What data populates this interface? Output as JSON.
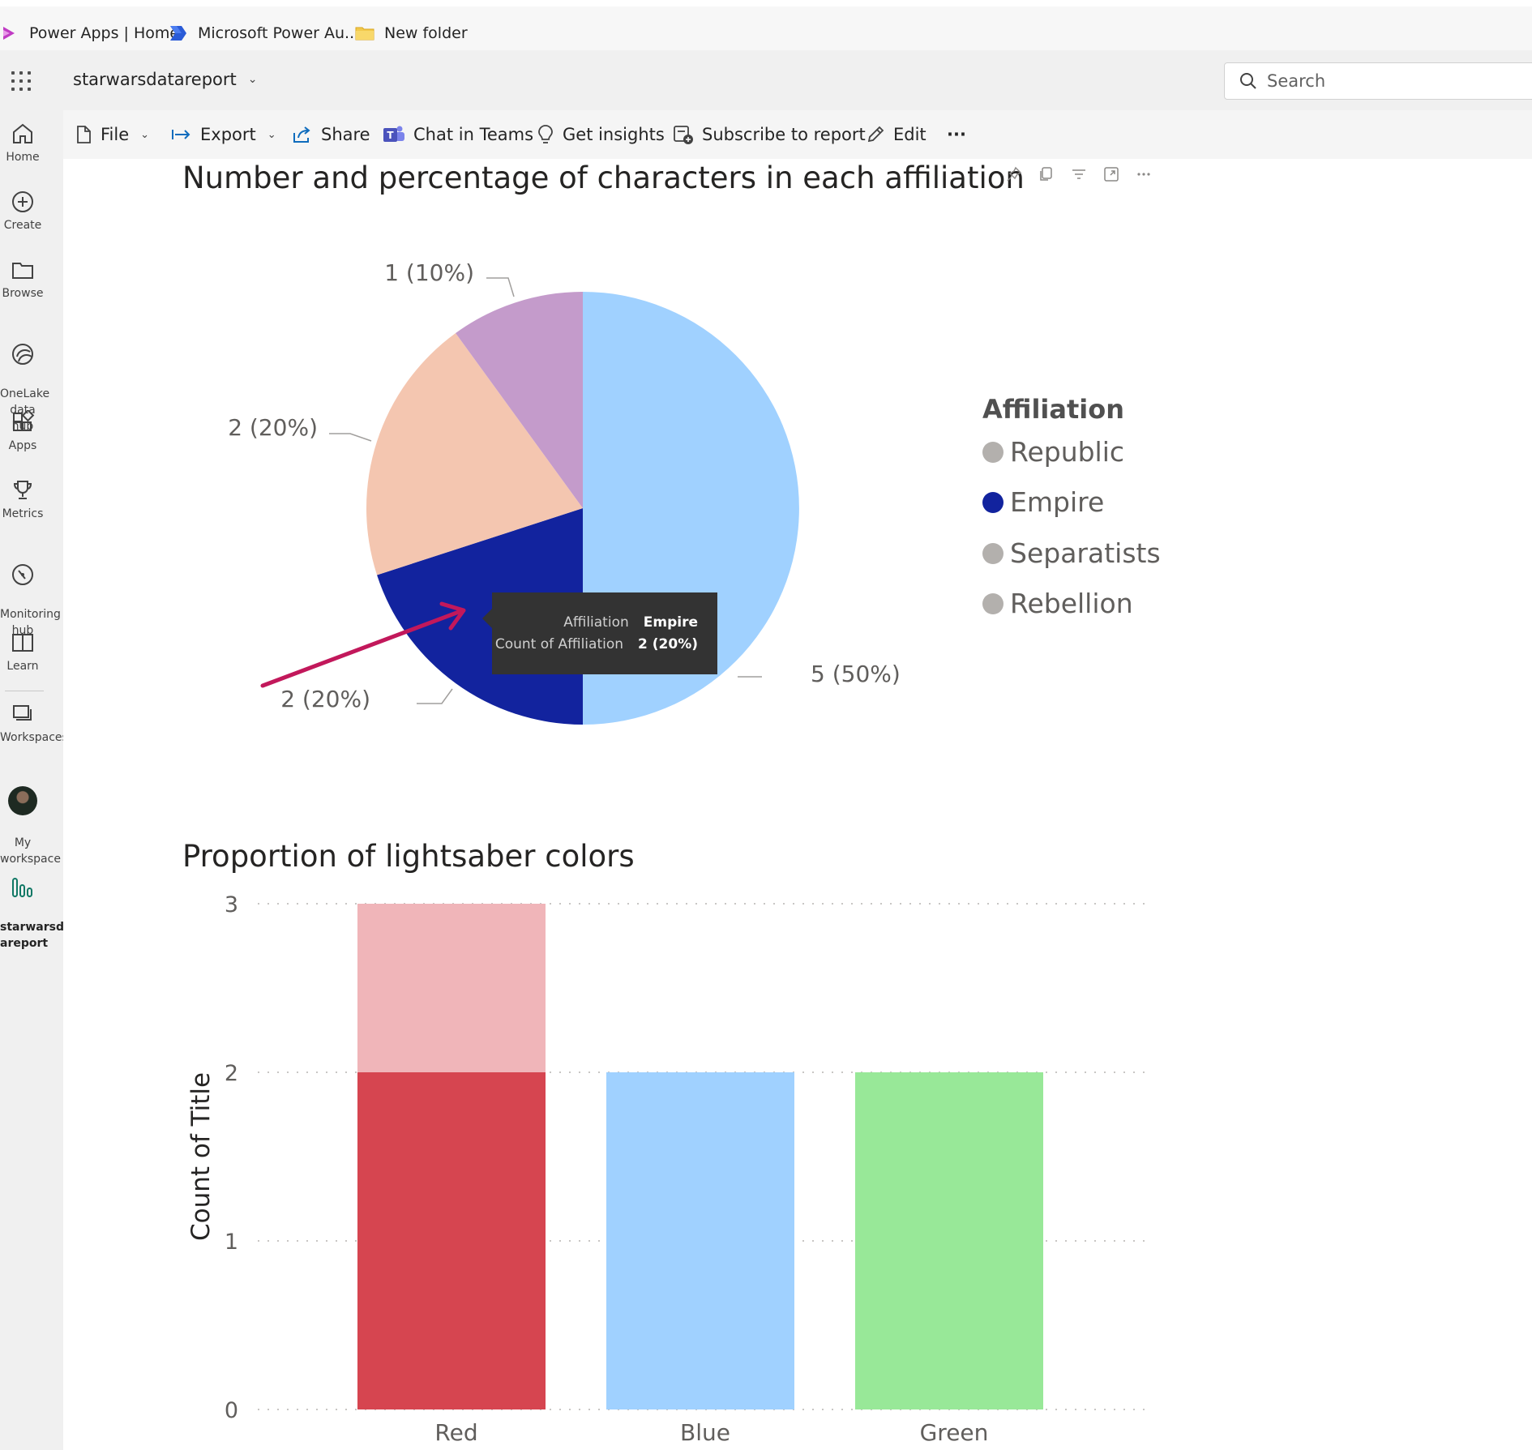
{
  "bookmarks": [
    {
      "label": "Power Apps | Home",
      "icon": "power-apps-icon"
    },
    {
      "label": "Microsoft Power Au...",
      "icon": "power-automate-icon"
    },
    {
      "label": "New folder",
      "icon": "folder-icon"
    }
  ],
  "header": {
    "report_name": "starwarsdatareport",
    "search_placeholder": "Search"
  },
  "leftnav": {
    "items": [
      {
        "label": "Home",
        "icon": "home-icon"
      },
      {
        "label": "Create",
        "icon": "plus-circle-icon"
      },
      {
        "label": "Browse",
        "icon": "folder-icon"
      },
      {
        "label": "OneLake\ndata hub",
        "icon": "onelake-icon"
      },
      {
        "label": "Apps",
        "icon": "apps-icon"
      },
      {
        "label": "Metrics",
        "icon": "trophy-icon"
      },
      {
        "label": "Monitoring\nhub",
        "icon": "monitoring-icon"
      },
      {
        "label": "Learn",
        "icon": "book-icon"
      },
      {
        "label": "Workspaces",
        "icon": "workspaces-icon"
      },
      {
        "label": "My\nworkspace",
        "icon": "avatar"
      },
      {
        "label": "starwarsdat\nareport",
        "icon": "report-icon"
      }
    ]
  },
  "toolbar": {
    "file": "File",
    "export": "Export",
    "share": "Share",
    "chat_in_teams": "Chat in Teams",
    "get_insights": "Get insights",
    "subscribe": "Subscribe to report",
    "edit": "Edit",
    "more": "···"
  },
  "pie": {
    "title": "Number and percentage of characters in each affiliation",
    "legend_title": "Affiliation",
    "legend": [
      {
        "name": "Republic",
        "color": "#b3b0ad"
      },
      {
        "name": "Empire",
        "color": "#12239e"
      },
      {
        "name": "Separatists",
        "color": "#b3b0ad"
      },
      {
        "name": "Rebellion",
        "color": "#b3b0ad"
      }
    ],
    "tooltip": {
      "k1": "Affiliation",
      "v1": "Empire",
      "k2": "Count of Affiliation",
      "v2": "2 (20%)"
    }
  },
  "bar": {
    "title": "Proportion of lightsaber colors"
  },
  "colors": {
    "accent": "#c2185b",
    "light_blue": "#a0d1ff",
    "empire": "#12239e",
    "peach": "#f4c6b0",
    "purple": "#c49bcb",
    "red": "#d64550",
    "pink": "#f0b5b9",
    "green": "#98e898"
  },
  "chart_data": [
    {
      "type": "pie",
      "title": "Number and percentage of characters in each affiliation",
      "legend_title": "Affiliation",
      "legend_placement": "right",
      "slices": [
        {
          "value": 5,
          "label": "5 (50%)",
          "color": "#a0d1ff"
        },
        {
          "value": 2,
          "label": "2 (20%)",
          "color": "#12239e",
          "name": "Empire"
        },
        {
          "value": 2,
          "label": "2 (20%)",
          "color": "#f4c6b0"
        },
        {
          "value": 1,
          "label": "1 (10%)",
          "color": "#c49bcb"
        }
      ]
    },
    {
      "type": "bar",
      "stacked": true,
      "title": "Proportion of lightsaber colors",
      "ylabel": "Count of Title",
      "xlabel": "",
      "categories": [
        "Red",
        "Blue",
        "Green"
      ],
      "ylim": [
        0,
        3
      ],
      "yticks": [
        "0",
        "1",
        "2",
        "3"
      ],
      "grid": true,
      "bars": [
        {
          "category": "Red",
          "segments": [
            {
              "value": 2,
              "color": "#d64550"
            },
            {
              "value": 1,
              "color": "#f0b5b9"
            }
          ]
        },
        {
          "category": "Blue",
          "segments": [
            {
              "value": 2,
              "color": "#a0d1ff"
            }
          ]
        },
        {
          "category": "Green",
          "segments": [
            {
              "value": 2,
              "color": "#98e898"
            }
          ]
        }
      ]
    }
  ]
}
